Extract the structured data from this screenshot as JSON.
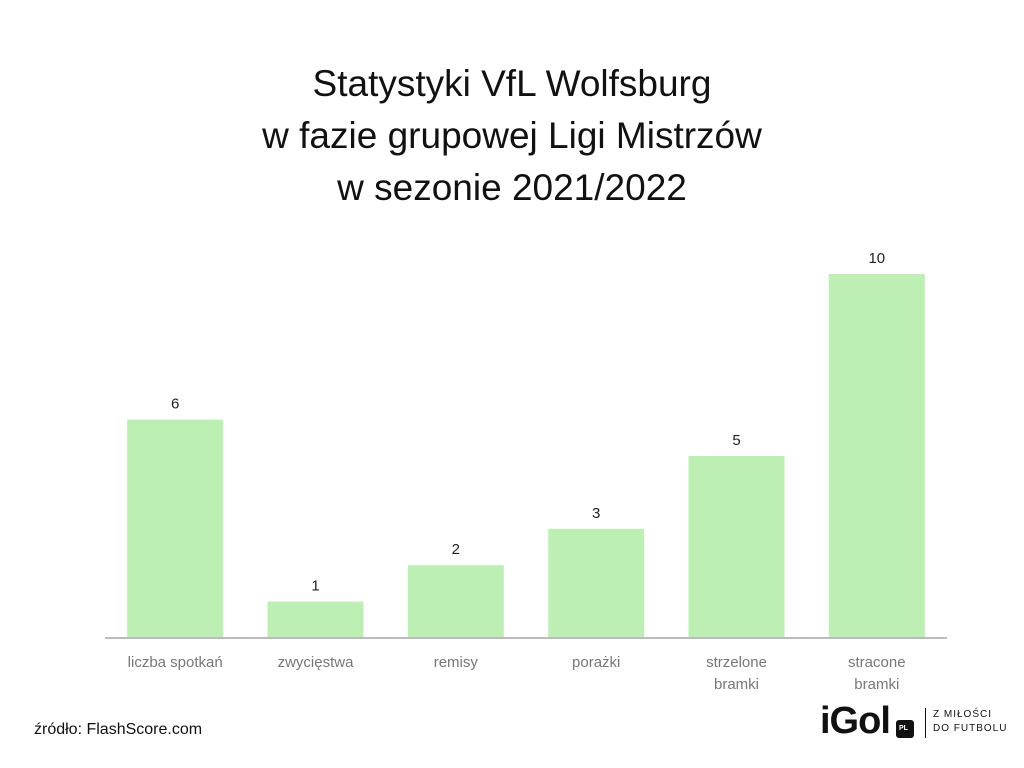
{
  "chart_data": {
    "type": "bar",
    "title_lines": [
      "Statystyki VfL Wolfsburg",
      "w fazie grupowej Ligi Mistrzów",
      "w sezonie 2021/2022"
    ],
    "categories": [
      [
        "liczba spotkań"
      ],
      [
        "zwycięstwa"
      ],
      [
        "remisy"
      ],
      [
        "porażki"
      ],
      [
        "strzelone",
        "bramki"
      ],
      [
        "stracone",
        "bramki"
      ]
    ],
    "values": [
      6,
      1,
      2,
      3,
      5,
      10
    ],
    "ylim": [
      0,
      10
    ],
    "grid": false,
    "bar_color": "#bdeeb3",
    "axis_color": "#bbbbbb"
  },
  "source": "źródło: FlashScore.com",
  "brand": {
    "logo": "iGol",
    "badge": "PL",
    "tagline_lines": [
      "Z MIŁOŚCI",
      "DO FUTBOLU"
    ]
  }
}
